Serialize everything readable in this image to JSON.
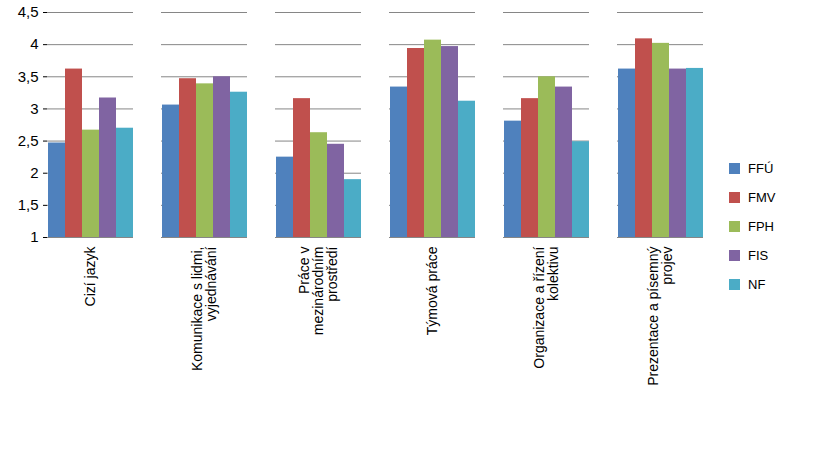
{
  "chart_data": {
    "type": "bar",
    "categories": [
      "Cizí jazyk",
      "Komunikace s lidmi, vyjednávání",
      "Práce v mezinárodním prostředí",
      "Týmová práce",
      "Organizace a řízení kolektivu",
      "Prezentace a písemný projev"
    ],
    "series": [
      {
        "name": "FFÚ",
        "color": "#4f81bd",
        "values": [
          2.47,
          3.06,
          2.25,
          3.34,
          2.81,
          3.62
        ]
      },
      {
        "name": "FMV",
        "color": "#c0504d",
        "values": [
          3.62,
          3.47,
          3.16,
          3.94,
          3.16,
          4.09
        ]
      },
      {
        "name": "FPH",
        "color": "#9bbb59",
        "values": [
          2.67,
          3.39,
          2.63,
          4.07,
          3.5,
          4.02
        ]
      },
      {
        "name": "FIS",
        "color": "#8064a2",
        "values": [
          3.17,
          3.5,
          2.45,
          3.97,
          3.34,
          3.62
        ]
      },
      {
        "name": "NF",
        "color": "#4bacc6",
        "values": [
          2.7,
          3.26,
          1.9,
          3.12,
          2.49,
          3.63
        ]
      }
    ],
    "ylim": [
      1,
      4.5
    ],
    "yticks": [
      1,
      {
        "value": 1.5,
        "label": "1,5"
      },
      2,
      {
        "value": 2.5,
        "label": "2,5"
      },
      3,
      {
        "value": 3.5,
        "label": "3,5"
      },
      4,
      {
        "value": 4.5,
        "label": "4,5"
      }
    ],
    "grid": true,
    "legend": "right"
  }
}
